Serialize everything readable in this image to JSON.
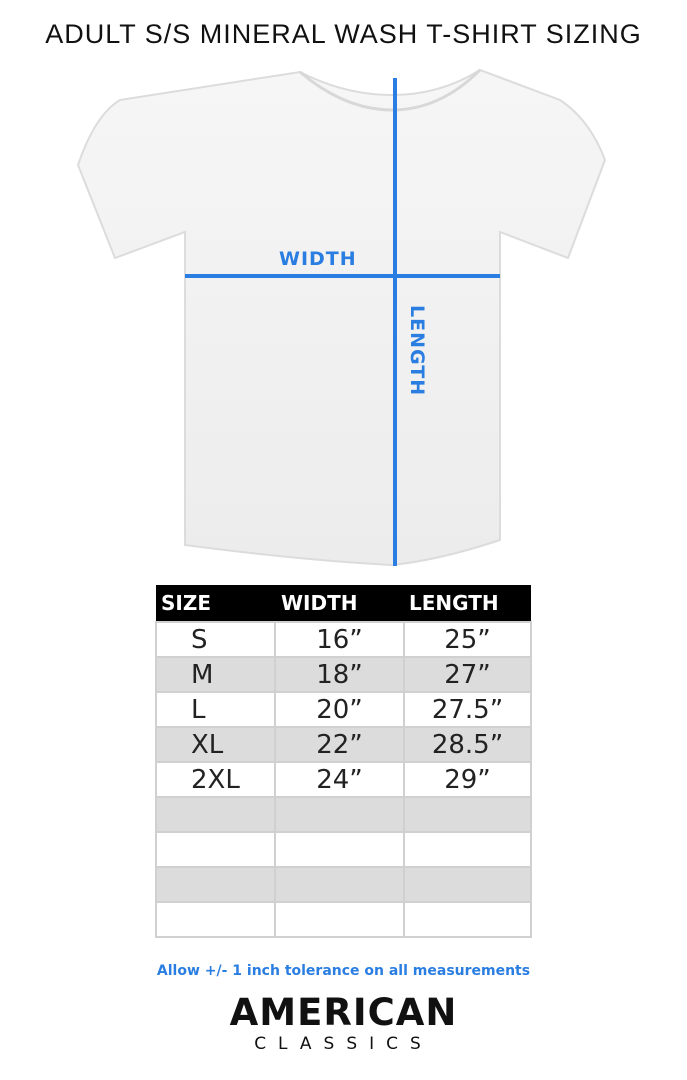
{
  "title": "ADULT S/S MINERAL WASH T-SHIRT SIZING",
  "diagram": {
    "width_label": "WIDTH",
    "length_label": "LENGTH",
    "accent_color": "#2a7de1"
  },
  "table": {
    "headers": [
      "SIZE",
      "WIDTH",
      "LENGTH"
    ],
    "rows": [
      [
        "S",
        "16”",
        "25”"
      ],
      [
        "M",
        "18”",
        "27”"
      ],
      [
        "L",
        "20”",
        "27.5”"
      ],
      [
        "XL",
        "22”",
        "28.5”"
      ],
      [
        "2XL",
        "24”",
        "29”"
      ],
      [
        "",
        "",
        ""
      ],
      [
        "",
        "",
        ""
      ],
      [
        "",
        "",
        ""
      ],
      [
        "",
        "",
        ""
      ]
    ]
  },
  "note": "Allow +/- 1 inch tolerance on all measurements",
  "logo": {
    "line1": "AMERICAN",
    "line2": "CLASSICS"
  }
}
